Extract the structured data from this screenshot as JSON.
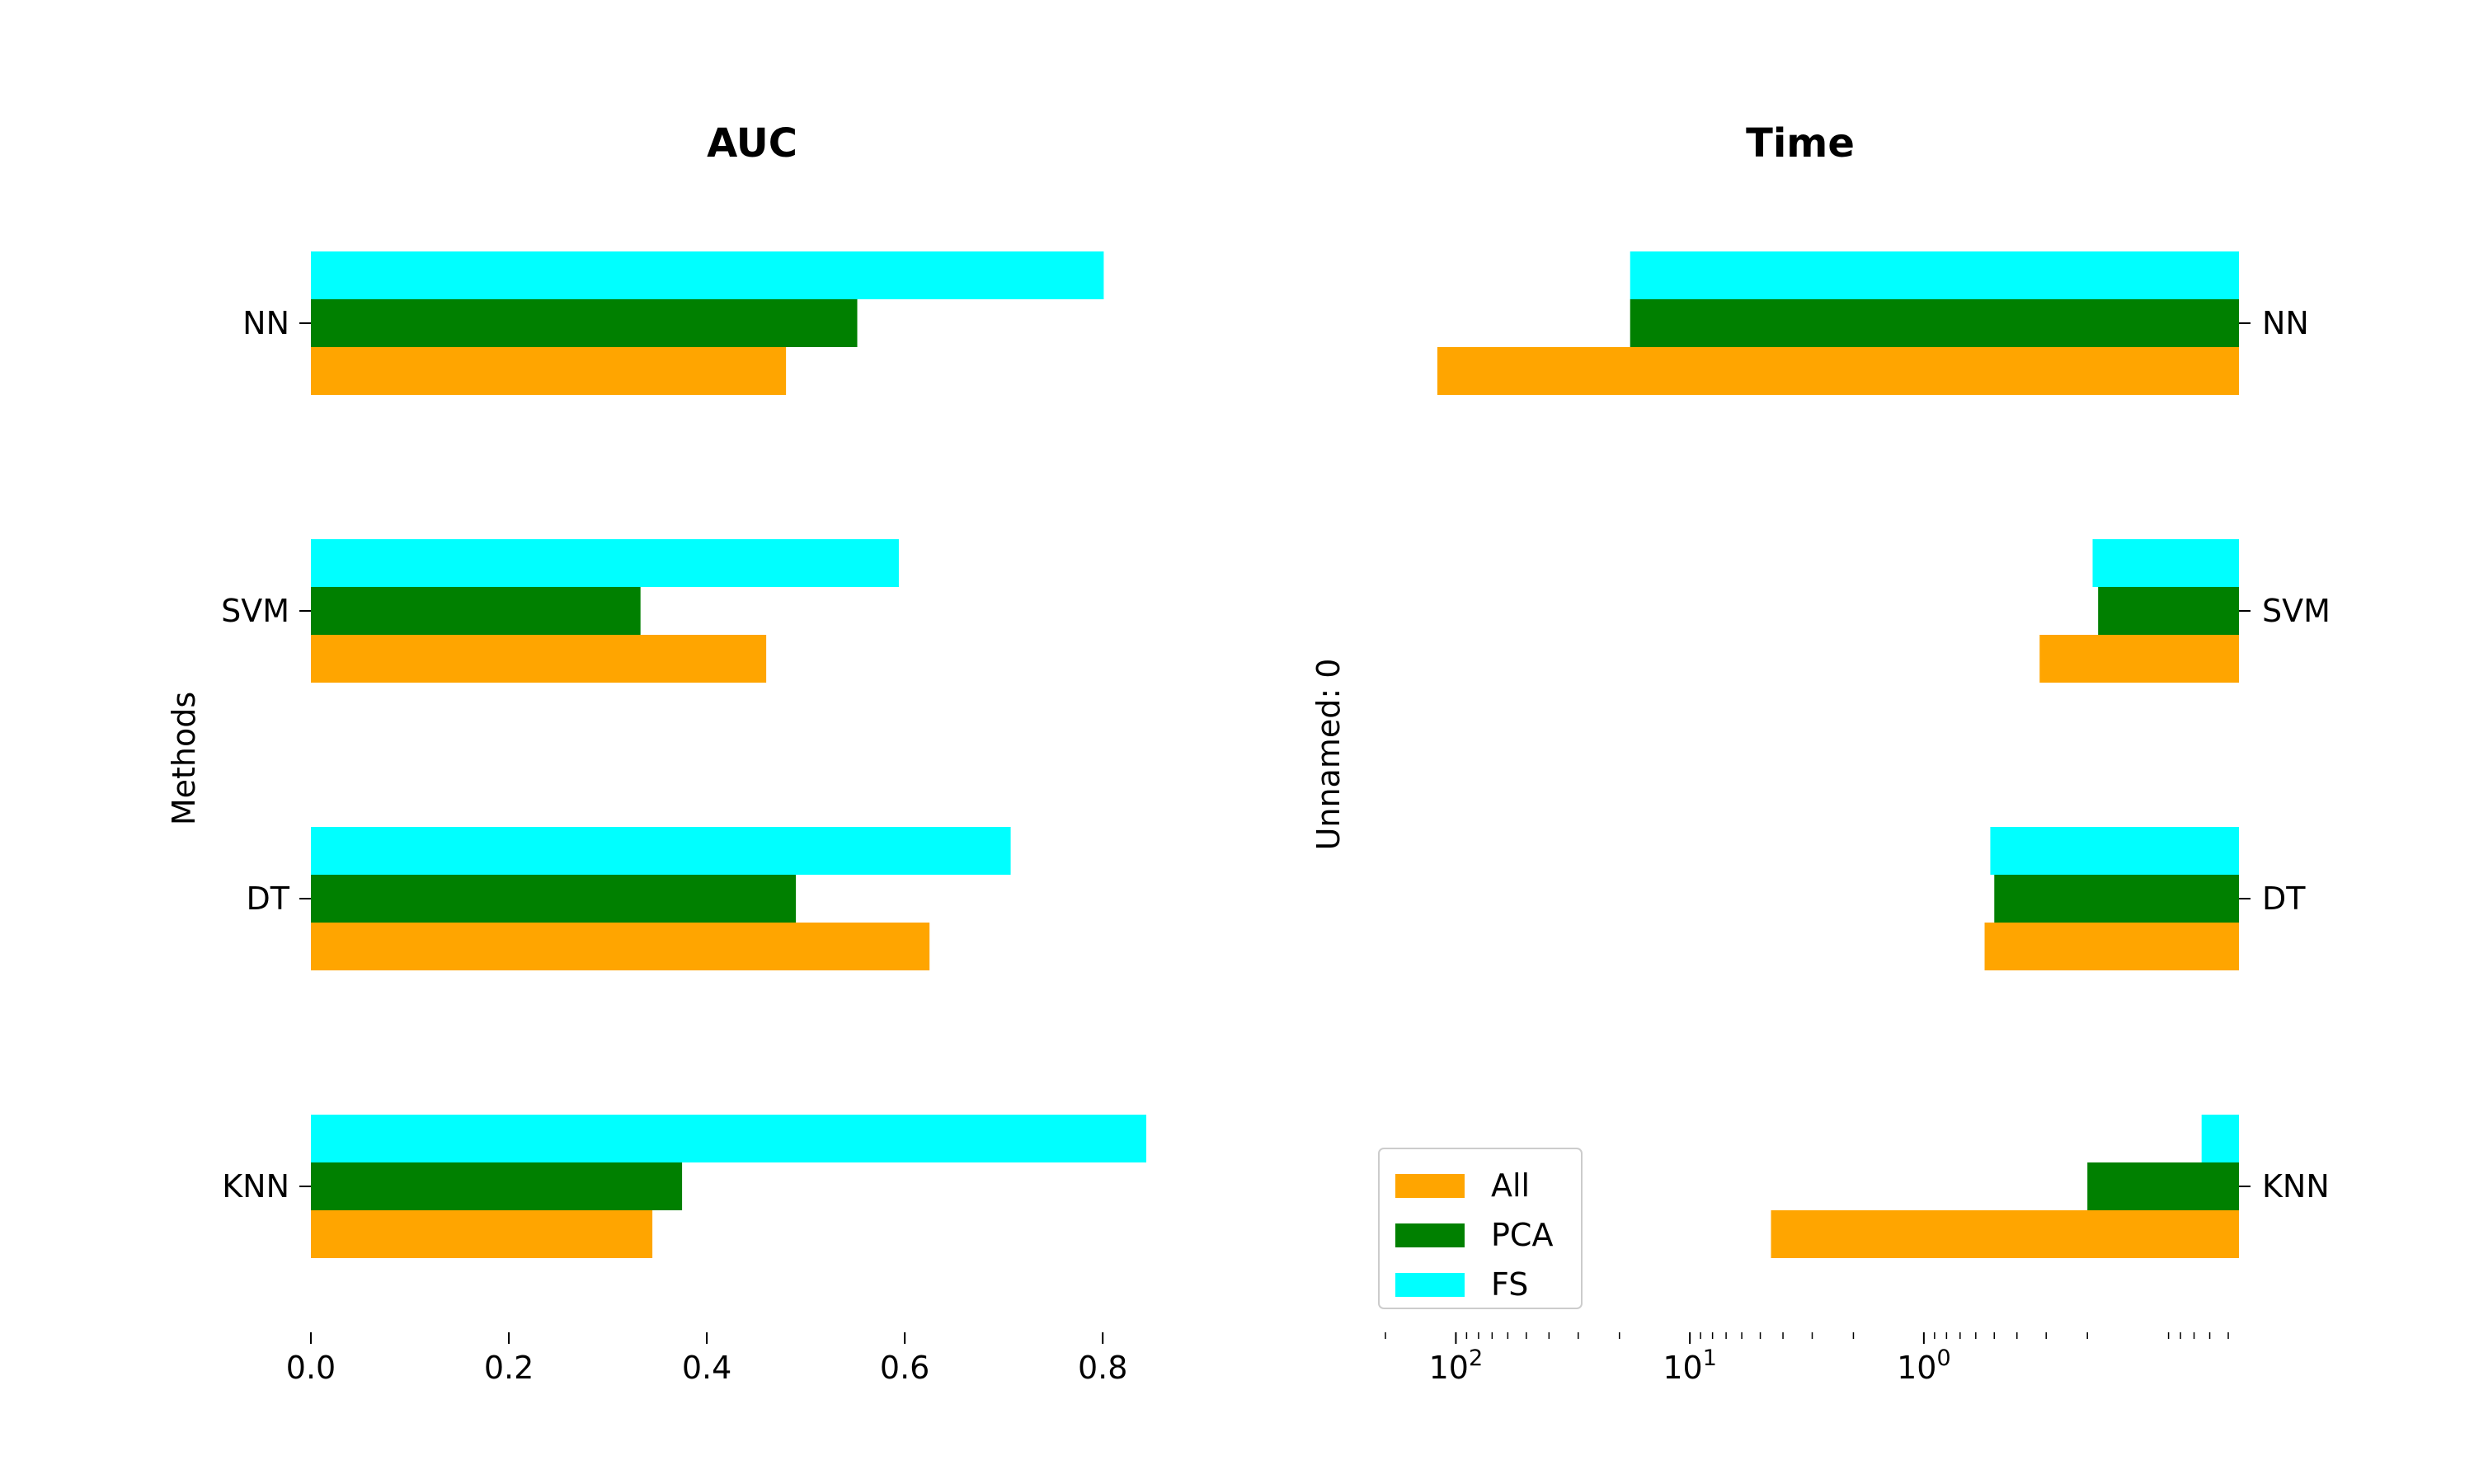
{
  "chart_data": [
    {
      "type": "bar",
      "orientation": "horizontal",
      "title": "AUC",
      "xlabel": "",
      "ylabel": "Methods",
      "categories": [
        "NN",
        "SVM",
        "DT",
        "KNN"
      ],
      "series": [
        {
          "name": "All",
          "color": "#FFA500",
          "values": [
            0.48,
            0.46,
            0.625,
            0.345
          ]
        },
        {
          "name": "PCA",
          "color": "#008000",
          "values": [
            0.552,
            0.333,
            0.49,
            0.375
          ]
        },
        {
          "name": "FS",
          "color": "#00FFFF",
          "values": [
            0.801,
            0.594,
            0.707,
            0.844
          ]
        }
      ],
      "xlim": [
        0,
        0.844
      ],
      "xticks": [
        "0.0",
        "0.2",
        "0.4",
        "0.6",
        "0.8"
      ],
      "xtick_values": [
        0,
        0.2,
        0.4,
        0.6,
        0.8
      ]
    },
    {
      "type": "bar",
      "orientation": "horizontal",
      "title": "Time",
      "xlabel": "",
      "ylabel": "Unnamed: 0",
      "categories": [
        "NN",
        "SVM",
        "DT",
        "KNN"
      ],
      "series": [
        {
          "name": "All",
          "color": "#FFA500",
          "values": [
            120,
            0.32,
            0.55,
            4.5
          ]
        },
        {
          "name": "PCA",
          "color": "#008000",
          "values": [
            18,
            0.18,
            0.5,
            0.2
          ]
        },
        {
          "name": "FS",
          "color": "#00FFFF",
          "values": [
            18,
            0.19,
            0.52,
            0.065
          ]
        }
      ],
      "x_scale": "log",
      "x_inverted": true,
      "xlim": [
        200,
        0.045
      ],
      "xticks": [
        {
          "value": 100,
          "base": "10",
          "exp": "2"
        },
        {
          "value": 10,
          "base": "10",
          "exp": "1"
        },
        {
          "value": 1,
          "base": "10",
          "exp": "0"
        }
      ],
      "legend": {
        "placement": "lower-left",
        "entries": [
          "All",
          "PCA",
          "FS"
        ]
      }
    }
  ]
}
